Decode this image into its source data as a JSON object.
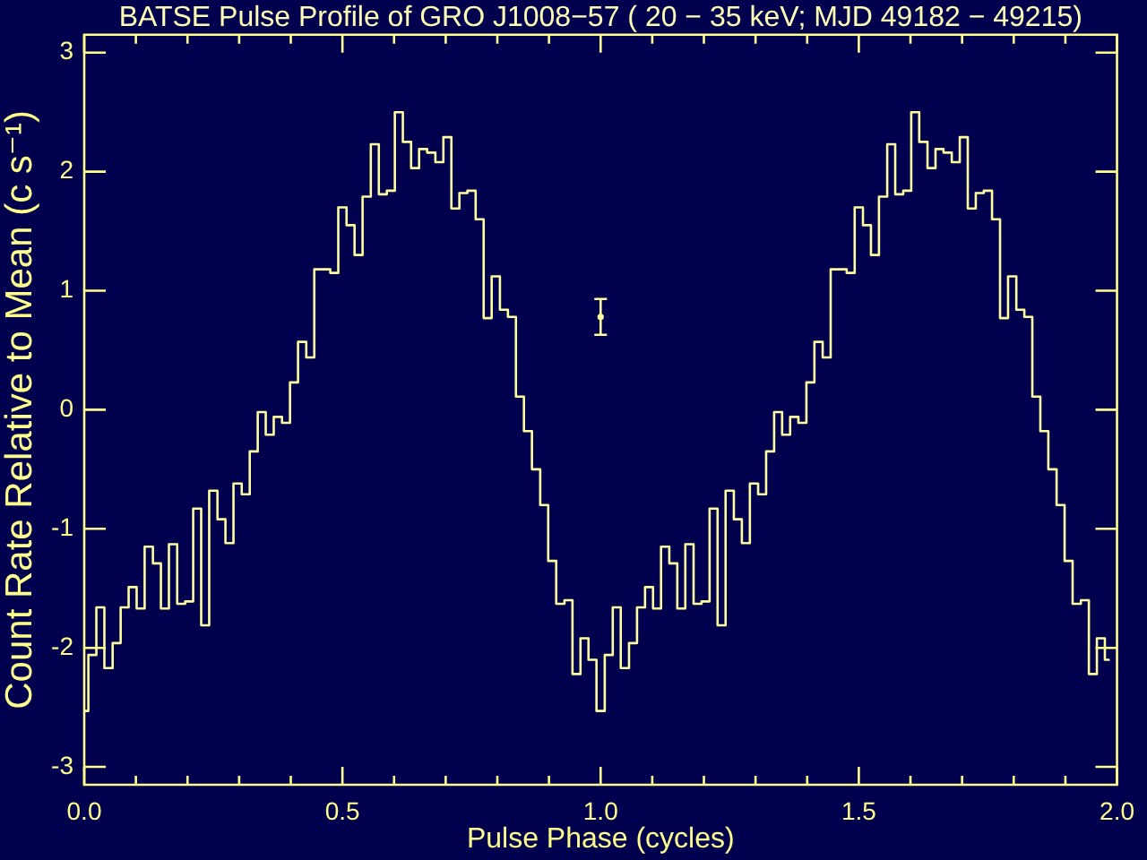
{
  "chart_data": {
    "type": "step",
    "title": "BATSE Pulse Profile of GRO J1008−57 ( 20 − 35 keV; MJD 49182 − 49215)",
    "xlabel": "Pulse Phase (cycles)",
    "ylabel": "Count Rate Relative to Mean (c s⁻¹)",
    "xlim": [
      0,
      2
    ],
    "ylim": [
      -3.15,
      3.15
    ],
    "xticks": [
      {
        "value": 0,
        "label": "0.0"
      },
      {
        "value": 0.1,
        "label": null
      },
      {
        "value": 0.2,
        "label": null
      },
      {
        "value": 0.3,
        "label": null
      },
      {
        "value": 0.4,
        "label": null
      },
      {
        "value": 0.5,
        "label": "0.5"
      },
      {
        "value": 0.6,
        "label": null
      },
      {
        "value": 0.7,
        "label": null
      },
      {
        "value": 0.8,
        "label": null
      },
      {
        "value": 0.9,
        "label": null
      },
      {
        "value": 1,
        "label": "1.0"
      },
      {
        "value": 1.1,
        "label": null
      },
      {
        "value": 1.2,
        "label": null
      },
      {
        "value": 1.3,
        "label": null
      },
      {
        "value": 1.4,
        "label": null
      },
      {
        "value": 1.5,
        "label": "1.5"
      },
      {
        "value": 1.6,
        "label": null
      },
      {
        "value": 1.7,
        "label": null
      },
      {
        "value": 1.8,
        "label": null
      },
      {
        "value": 1.9,
        "label": null
      },
      {
        "value": 2,
        "label": "2.0"
      }
    ],
    "yticks": [
      -3,
      -2,
      -1,
      0,
      1,
      2,
      3
    ],
    "series": [
      {
        "color": "#ffffa0",
        "x": [
          0,
          0.016,
          0.031,
          0.047,
          0.063,
          0.078,
          0.094,
          0.109,
          0.125,
          0.141,
          0.156,
          0.172,
          0.188,
          0.203,
          0.219,
          0.234,
          0.25,
          0.266,
          0.281,
          0.297,
          0.313,
          0.328,
          0.344,
          0.359,
          0.375,
          0.391,
          0.406,
          0.422,
          0.438,
          0.453,
          0.469,
          0.484,
          0.5,
          0.516,
          0.531,
          0.547,
          0.563,
          0.578,
          0.594,
          0.609,
          0.625,
          0.641,
          0.656,
          0.672,
          0.688,
          0.703,
          0.719,
          0.734,
          0.75,
          0.766,
          0.781,
          0.797,
          0.813,
          0.828,
          0.844,
          0.859,
          0.875,
          0.891,
          0.906,
          0.922,
          0.938,
          0.953,
          0.969,
          0.984,
          1,
          1.016,
          1.031,
          1.047,
          1.063,
          1.078,
          1.094,
          1.109,
          1.125,
          1.141,
          1.156,
          1.172,
          1.188,
          1.203,
          1.219,
          1.234,
          1.25,
          1.266,
          1.281,
          1.297,
          1.313,
          1.328,
          1.344,
          1.359,
          1.375,
          1.391,
          1.406,
          1.422,
          1.438,
          1.453,
          1.469,
          1.484,
          1.5,
          1.516,
          1.531,
          1.547,
          1.563,
          1.578,
          1.594,
          1.609,
          1.625,
          1.641,
          1.656,
          1.672,
          1.688,
          1.703,
          1.719,
          1.734,
          1.75,
          1.766,
          1.781,
          1.797,
          1.813,
          1.828,
          1.844,
          1.859,
          1.875,
          1.891,
          1.906,
          1.922,
          1.938,
          1.953,
          1.969,
          1.984
        ],
        "values": [
          -2.53,
          -2.06,
          -1.66,
          -2.17,
          -1.96,
          -1.66,
          -1.49,
          -1.67,
          -1.15,
          -1.29,
          -1.67,
          -1.13,
          -1.63,
          -1.61,
          -0.83,
          -1.81,
          -0.68,
          -0.92,
          -1.12,
          -0.62,
          -0.71,
          -0.35,
          -0.02,
          -0.21,
          -0.06,
          -0.11,
          0.23,
          0.57,
          0.44,
          1.18,
          1.18,
          1.15,
          1.7,
          1.55,
          1.3,
          1.79,
          2.23,
          1.81,
          1.84,
          2.5,
          2.25,
          2.03,
          2.19,
          2.16,
          2.08,
          2.29,
          1.69,
          1.82,
          1.84,
          1.6,
          0.77,
          1.12,
          0.84,
          0.78,
          0.11,
          -0.18,
          -0.5,
          -0.8,
          -1.27,
          -1.63,
          -1.6,
          -2.22,
          -1.92,
          -2.1,
          -2.53,
          -2.06,
          -1.66,
          -2.17,
          -1.96,
          -1.66,
          -1.49,
          -1.67,
          -1.15,
          -1.29,
          -1.67,
          -1.13,
          -1.63,
          -1.61,
          -0.83,
          -1.81,
          -0.68,
          -0.92,
          -1.12,
          -0.62,
          -0.71,
          -0.35,
          -0.02,
          -0.21,
          -0.06,
          -0.11,
          0.23,
          0.57,
          0.44,
          1.18,
          1.18,
          1.15,
          1.7,
          1.55,
          1.3,
          1.79,
          2.23,
          1.81,
          1.84,
          2.5,
          2.25,
          2.03,
          2.19,
          2.16,
          2.08,
          2.29,
          1.69,
          1.82,
          1.84,
          1.6,
          0.77,
          1.12,
          0.84,
          0.78,
          0.11,
          -0.18,
          -0.5,
          -0.8,
          -1.27,
          -1.63,
          -1.6,
          -2.22,
          -1.92,
          -2.1
        ]
      },
      {
        "type": "scatter",
        "color": "#ffffa0",
        "x": [
          1
        ],
        "values": [
          0.78
        ],
        "errors": [
          0.15
        ]
      }
    ]
  }
}
